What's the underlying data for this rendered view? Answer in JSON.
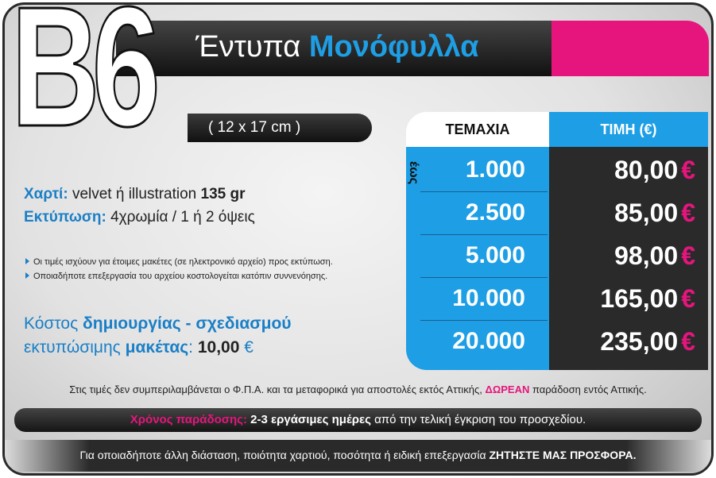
{
  "header": {
    "code": "B6",
    "title_light": "Έντυπα",
    "title_bold": "Μονόφυλλα",
    "size": "( 12 x 17 cm )"
  },
  "specs": [
    {
      "label": "Χαρτί:",
      "text": "velvet ή illustration",
      "bold": "135 gr"
    },
    {
      "label": "Εκτύπωση:",
      "text": "4χρωμία / 1 ή 2 όψεις"
    }
  ],
  "notes": [
    "Οι τιμές ισχύουν για έτοιμες μακέτες (σε ηλεκτρονικό αρχείο) προς εκτύπωση.",
    "Οποιαδήποτε επεξεργασία του αρχείου κοστολογείται κατόπιν συννενόησης."
  ],
  "design_cost": {
    "line1_light": "Κόστος",
    "line1_bold": "δημιουργίας - σχεδιασμού",
    "line2_light": "εκτυπώσιμης",
    "line2_bold": "μακέτας",
    "colon": ":",
    "price": "10,00",
    "currency": "€"
  },
  "table": {
    "headers": [
      "ΤΕΜΑΧΙΑ",
      "ΤΙΜΗ (€)"
    ],
    "upto": "έως",
    "currency": "€",
    "rows": [
      [
        "1.000",
        "80,00"
      ],
      [
        "2.500",
        "85,00"
      ],
      [
        "5.000",
        "98,00"
      ],
      [
        "10.000",
        "165,00"
      ],
      [
        "20.000",
        "235,00"
      ]
    ]
  },
  "footer": {
    "vat_note": {
      "before": "Στις τιμές δεν συμπεριλαμβάνεται ο Φ.Π.Α. και τα μεταφορικά για αποστολές εκτός Αττικής,",
      "highlight": "ΔΩΡΕΑΝ",
      "after": "παράδοση εντός Αττικής."
    },
    "delivery": {
      "label": "Χρόνος παράδοσης:",
      "bold": "2-3 εργάσιμες ημέρες",
      "text": "από την τελική έγκριση του προσχεδίου."
    },
    "offer": {
      "text": "Για οποιαδήποτε άλλη διάσταση, ποιότητα χαρτιού, ποσότητα ή ειδική επεξεργασία",
      "bold": "ΖΗΤΗΣΤΕ ΜΑΣ ΠΡΟΣΦΟΡΑ."
    }
  }
}
